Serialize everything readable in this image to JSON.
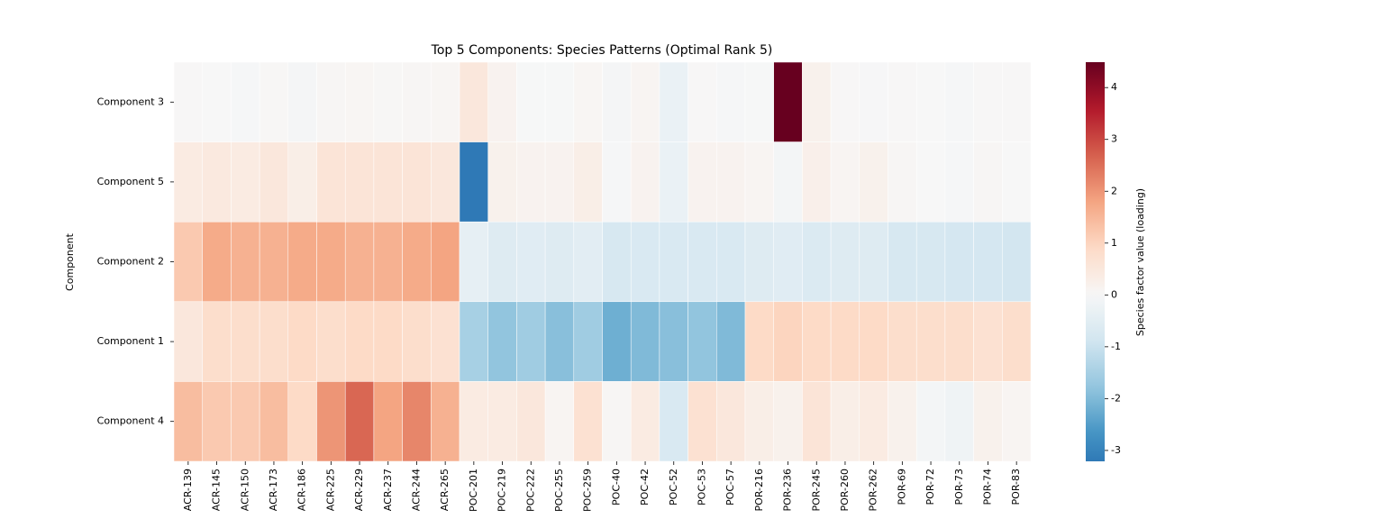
{
  "chart_data": {
    "type": "heatmap",
    "title": "Top 5 Components: Species Patterns (Optimal Rank 5)",
    "y_label": "Component",
    "colorbar_label": "Species factor value (loading)",
    "x": [
      "ACR-139",
      "ACR-145",
      "ACR-150",
      "ACR-173",
      "ACR-186",
      "ACR-225",
      "ACR-229",
      "ACR-237",
      "ACR-244",
      "ACR-265",
      "POC-201",
      "POC-219",
      "POC-222",
      "POC-255",
      "POC-259",
      "POC-40",
      "POC-42",
      "POC-52",
      "POC-53",
      "POC-57",
      "POR-216",
      "POR-236",
      "POR-245",
      "POR-260",
      "POR-262",
      "POR-69",
      "POR-72",
      "POR-73",
      "POR-74",
      "POR-83"
    ],
    "y": [
      "Component 3",
      "Component 5",
      "Component 2",
      "Component 1",
      "Component 4"
    ],
    "values": [
      [
        0.02,
        0.0,
        -0.05,
        0.03,
        -0.08,
        0.06,
        0.08,
        0.03,
        0.05,
        0.08,
        0.5,
        0.15,
        -0.02,
        -0.02,
        0.08,
        -0.08,
        0.1,
        -0.3,
        0.02,
        -0.05,
        -0.02,
        4.49,
        0.2,
        0.02,
        -0.03,
        0.02,
        0.0,
        -0.05,
        0.02,
        0.02
      ],
      [
        0.4,
        0.45,
        0.4,
        0.5,
        0.3,
        0.6,
        0.6,
        0.6,
        0.6,
        0.5,
        -3.21,
        0.2,
        0.15,
        0.15,
        0.3,
        -0.05,
        0.15,
        -0.3,
        0.15,
        0.15,
        0.1,
        -0.1,
        0.25,
        0.1,
        0.2,
        0.05,
        0.0,
        -0.05,
        0.05,
        0.0
      ],
      [
        1.2,
        1.7,
        1.6,
        1.6,
        1.7,
        1.7,
        1.6,
        1.6,
        1.7,
        1.8,
        -0.4,
        -0.6,
        -0.55,
        -0.6,
        -0.5,
        -0.75,
        -0.7,
        -0.7,
        -0.7,
        -0.7,
        -0.6,
        -0.55,
        -0.65,
        -0.6,
        -0.6,
        -0.75,
        -0.75,
        -0.8,
        -0.8,
        -0.85
      ],
      [
        0.5,
        0.8,
        0.8,
        0.8,
        0.9,
        0.8,
        0.9,
        0.9,
        0.8,
        0.7,
        -1.5,
        -1.8,
        -1.6,
        -1.9,
        -1.6,
        -2.2,
        -2.0,
        -1.9,
        -1.8,
        -2.0,
        0.9,
        1.0,
        0.9,
        0.9,
        0.9,
        0.8,
        0.8,
        0.8,
        0.7,
        0.8
      ],
      [
        1.4,
        1.2,
        1.2,
        1.4,
        0.9,
        2.0,
        2.6,
        1.8,
        2.2,
        1.6,
        0.4,
        0.4,
        0.5,
        0.1,
        0.7,
        0.05,
        0.4,
        -0.7,
        0.7,
        0.5,
        0.3,
        0.2,
        0.6,
        0.3,
        0.4,
        0.2,
        -0.1,
        -0.2,
        0.2,
        0.1
      ]
    ],
    "colormap": [
      "#053061",
      "#2166ac",
      "#4393c3",
      "#92c5de",
      "#d1e5f0",
      "#f7f7f7",
      "#fddbc7",
      "#f4a582",
      "#d6604d",
      "#b2182b",
      "#67001f"
    ],
    "center": 0,
    "vlim": [
      -3.21,
      4.49
    ],
    "colorbar_ticks": [
      -3,
      -2,
      -1,
      0,
      1,
      2,
      3,
      4
    ]
  }
}
